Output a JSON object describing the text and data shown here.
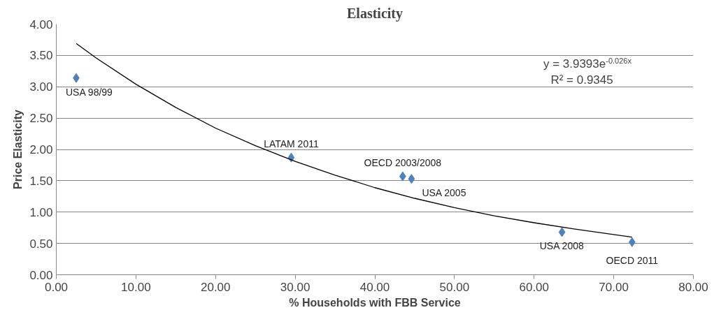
{
  "chart_data": {
    "type": "scatter",
    "title": "Elasticity",
    "xlabel": "% Households with FBB Service",
    "ylabel": "Price Elasticity",
    "grid": "y",
    "xlim": [
      0,
      80
    ],
    "ylim": [
      0,
      4
    ],
    "xticks": [
      {
        "value": 0,
        "label": "0.00"
      },
      {
        "value": 10,
        "label": "10.00"
      },
      {
        "value": 20,
        "label": "20.00"
      },
      {
        "value": 30,
        "label": "30.00"
      },
      {
        "value": 40,
        "label": "40.00"
      },
      {
        "value": 50,
        "label": "50.00"
      },
      {
        "value": 60,
        "label": "60.00"
      },
      {
        "value": 70,
        "label": "70.00"
      },
      {
        "value": 80,
        "label": "80.00"
      }
    ],
    "yticks": [
      {
        "value": 0,
        "label": "0.00"
      },
      {
        "value": 0.5,
        "label": "0.50"
      },
      {
        "value": 1,
        "label": "1.00"
      },
      {
        "value": 1.5,
        "label": "1.50"
      },
      {
        "value": 2,
        "label": "2.00"
      },
      {
        "value": 2.5,
        "label": "2.50"
      },
      {
        "value": 3,
        "label": "3.00"
      },
      {
        "value": 3.5,
        "label": "3.50"
      },
      {
        "value": 4,
        "label": "4.00"
      }
    ],
    "series": [
      {
        "marker": "diamond",
        "color": "#4f81bd",
        "x": [
          2.5,
          29.5,
          43.5,
          44.6,
          63.5,
          72.3
        ],
        "values": [
          3.14,
          1.87,
          1.57,
          1.53,
          0.68,
          0.52
        ]
      },
      {
        "type": "line",
        "color": "#000000",
        "x": [
          2.5,
          5,
          10,
          15,
          20,
          25,
          30,
          35,
          40,
          45,
          50,
          55,
          60,
          65,
          72.3
        ],
        "values": [
          3.69,
          3.46,
          3.04,
          2.67,
          2.34,
          2.06,
          1.81,
          1.59,
          1.39,
          1.22,
          1.07,
          0.94,
          0.83,
          0.73,
          0.6
        ]
      }
    ],
    "annotations": [
      {
        "text": "USA 98/99",
        "x": 2.5,
        "y": 3.14
      },
      {
        "text": "LATAM 2011",
        "x": 29.5,
        "y": 1.87
      },
      {
        "text": "OECD 2003/2008",
        "x": 43.5,
        "y": 1.57
      },
      {
        "text": "USA 2005",
        "x": 44.6,
        "y": 1.53
      },
      {
        "text": "USA 2008",
        "x": 63.5,
        "y": 0.68
      },
      {
        "text": "OECD 2011",
        "x": 72.3,
        "y": 0.52
      },
      "y = 3.9393e$^{-0.026x}$",
      "R² = 0.9345"
    ]
  }
}
